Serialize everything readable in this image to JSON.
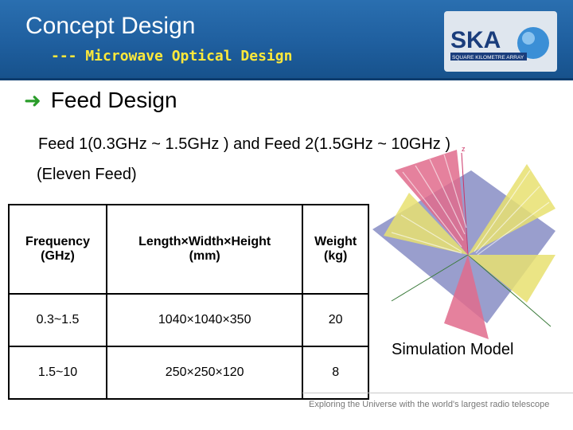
{
  "header": {
    "title": "Concept Design",
    "subtitle": "--- Microwave Optical Design",
    "logo_text": "SKA",
    "logo_tagline": "SQUARE KILOMETRE ARRAY"
  },
  "bullet": {
    "icon": "arrow-right-icon",
    "text": "Feed Design"
  },
  "description": {
    "line1": "Feed 1(0.3GHz ~ 1.5GHz ) and Feed 2(1.5GHz ~ 10GHz )",
    "line2": "(Eleven Feed)"
  },
  "table": {
    "headers": [
      [
        "Frequency",
        "(GHz)"
      ],
      [
        "Length×Width×Height",
        "(mm)"
      ],
      [
        "Weight",
        "(kg)"
      ]
    ],
    "rows": [
      [
        "0.3~1.5",
        "1040×1040×350",
        "20"
      ],
      [
        "1.5~10",
        "250×250×120",
        "8"
      ]
    ]
  },
  "simulation": {
    "label": "Simulation Model"
  },
  "footer": {
    "text": "Exploring the Universe with the world's largest radio telescope"
  },
  "colors": {
    "header_blue": "#1f5f9f",
    "subtitle_yellow": "#ffe93a",
    "bullet_green": "#2a9c2a"
  }
}
